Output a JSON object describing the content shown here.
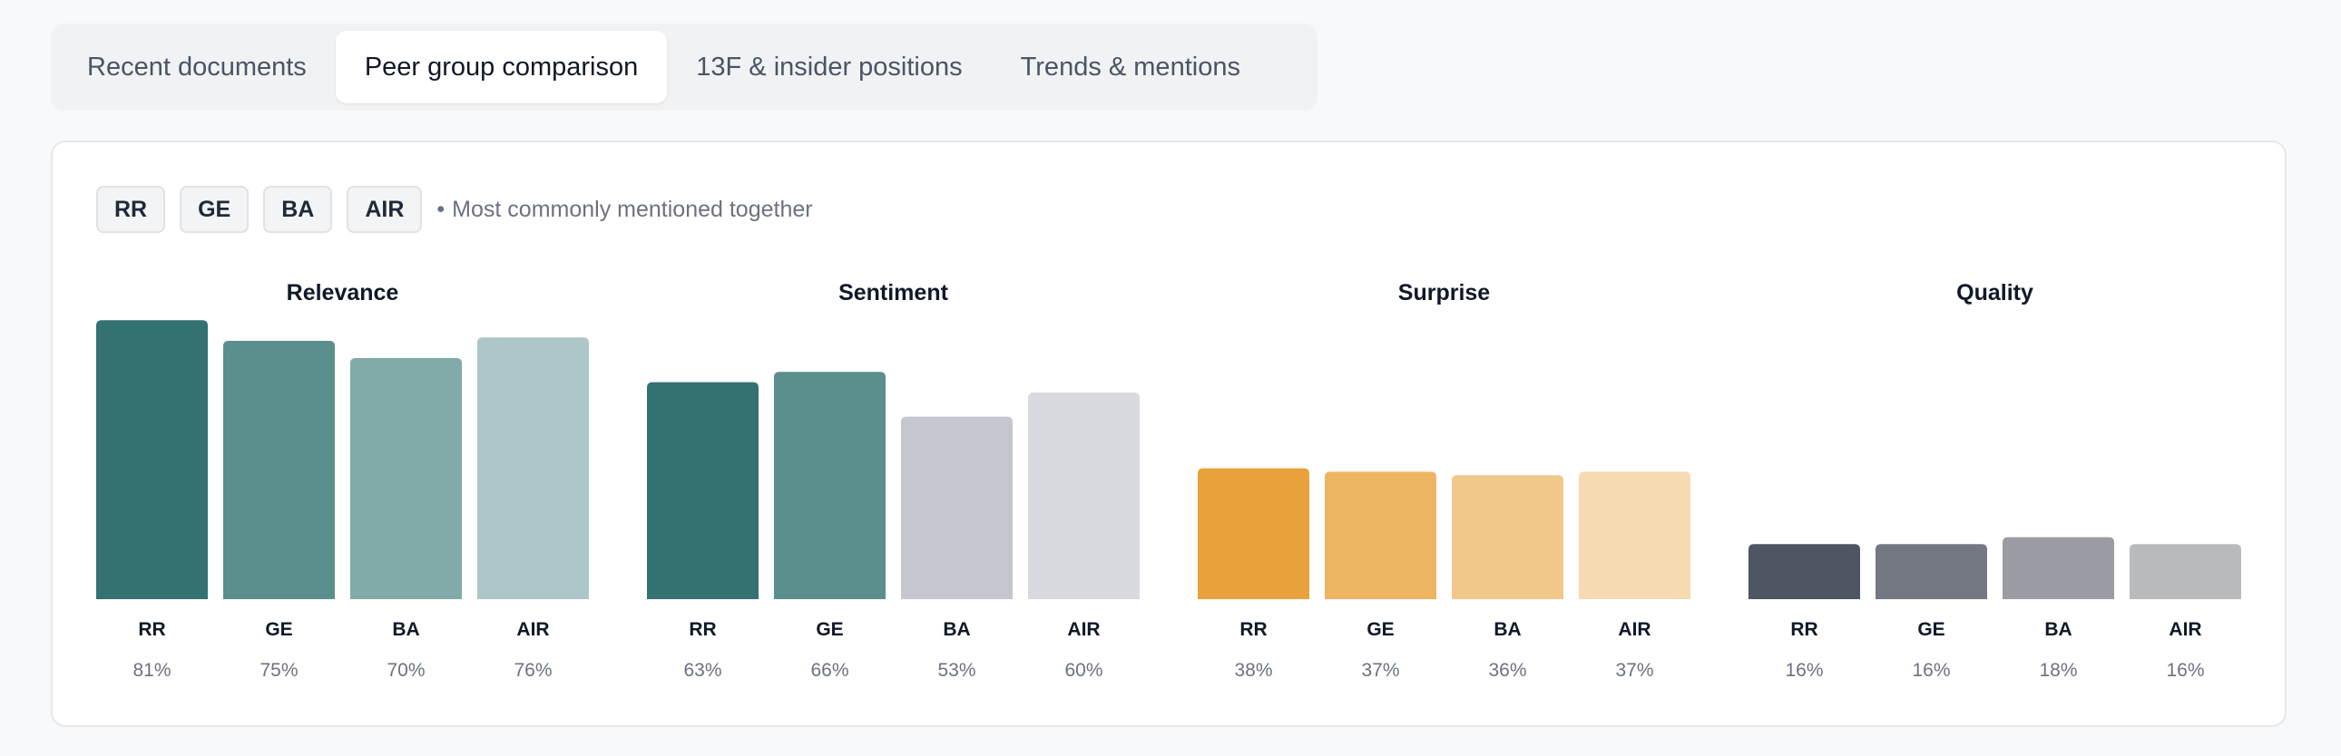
{
  "tabs": [
    {
      "label": "Recent documents",
      "active": false
    },
    {
      "label": "Peer group comparison",
      "active": true
    },
    {
      "label": "13F & insider positions",
      "active": false
    },
    {
      "label": "Trends & mentions",
      "active": false
    }
  ],
  "peers": {
    "tickers": [
      "RR",
      "GE",
      "BA",
      "AIR"
    ],
    "separator": "•",
    "note": "Most commonly mentioned together"
  },
  "chart_data": [
    {
      "type": "bar",
      "title": "Relevance",
      "categories": [
        "RR",
        "GE",
        "BA",
        "AIR"
      ],
      "values": [
        81,
        75,
        70,
        76
      ],
      "value_labels": [
        "81%",
        "75%",
        "70%",
        "76%"
      ],
      "ylim": [
        0,
        100
      ],
      "unit": "%",
      "colors": [
        "#337270",
        "#5b8f8d",
        "#82aaa8",
        "#adc6c7"
      ]
    },
    {
      "type": "bar",
      "title": "Sentiment",
      "categories": [
        "RR",
        "GE",
        "BA",
        "AIR"
      ],
      "values": [
        63,
        66,
        53,
        60
      ],
      "value_labels": [
        "63%",
        "66%",
        "53%",
        "60%"
      ],
      "ylim": [
        0,
        100
      ],
      "unit": "%",
      "colors": [
        "#337270",
        "#5b8f8d",
        "#c4c7ce",
        "#d9dadf"
      ]
    },
    {
      "type": "bar",
      "title": "Surprise",
      "categories": [
        "RR",
        "GE",
        "BA",
        "AIR"
      ],
      "values": [
        38,
        37,
        36,
        37
      ],
      "value_labels": [
        "38%",
        "37%",
        "36%",
        "37%"
      ],
      "ylim": [
        0,
        100
      ],
      "unit": "%",
      "colors": [
        "#e9a23b",
        "#edb461",
        "#f2c78a",
        "#f6dab2"
      ]
    },
    {
      "type": "bar",
      "title": "Quality",
      "categories": [
        "RR",
        "GE",
        "BA",
        "AIR"
      ],
      "values": [
        16,
        16,
        18,
        16
      ],
      "value_labels": [
        "16%",
        "16%",
        "18%",
        "16%"
      ],
      "ylim": [
        0,
        100
      ],
      "unit": "%",
      "colors": [
        "#4e5563",
        "#737883",
        "#9a9ca4",
        "#b8babe"
      ]
    }
  ]
}
